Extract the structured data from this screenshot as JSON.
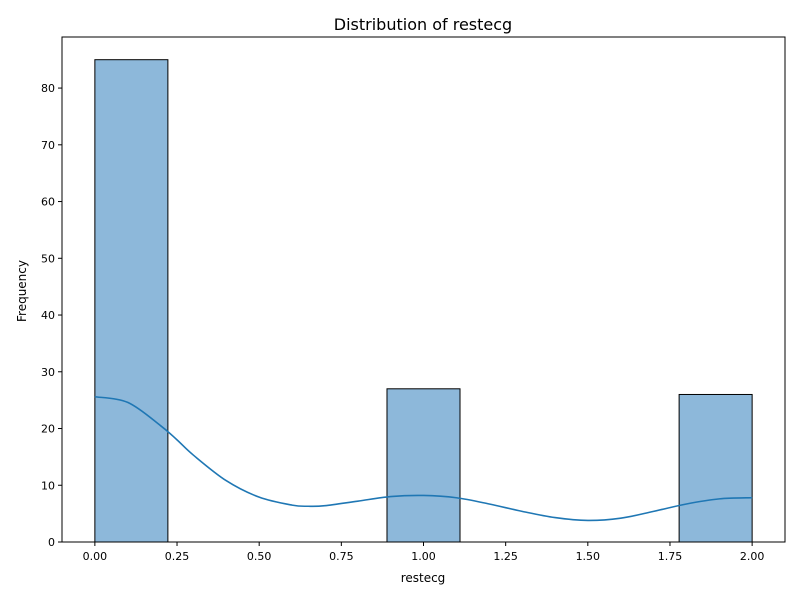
{
  "chart_data": {
    "type": "bar",
    "title": "Distribution of restecg",
    "xlabel": "restecg",
    "ylabel": "Frequency",
    "xlim": [
      -0.1,
      2.1
    ],
    "ylim": [
      0,
      89
    ],
    "xticks": [
      "0.00",
      "0.25",
      "0.50",
      "0.75",
      "1.00",
      "1.25",
      "1.50",
      "1.75",
      "2.00"
    ],
    "yticks": [
      "0",
      "10",
      "20",
      "30",
      "40",
      "50",
      "60",
      "70",
      "80"
    ],
    "bins": [
      {
        "x0": 0.0,
        "x1": 0.2222,
        "count": 85
      },
      {
        "x0": 0.2222,
        "x1": 0.4444,
        "count": 0
      },
      {
        "x0": 0.4444,
        "x1": 0.6667,
        "count": 0
      },
      {
        "x0": 0.6667,
        "x1": 0.8889,
        "count": 0
      },
      {
        "x0": 0.8889,
        "x1": 1.1111,
        "count": 27
      },
      {
        "x0": 1.1111,
        "x1": 1.3333,
        "count": 0
      },
      {
        "x0": 1.3333,
        "x1": 1.5556,
        "count": 0
      },
      {
        "x0": 1.5556,
        "x1": 1.7778,
        "count": 0
      },
      {
        "x0": 1.7778,
        "x1": 2.0,
        "count": 26
      }
    ],
    "kde": {
      "x": [
        0.0,
        0.1,
        0.2,
        0.25,
        0.3,
        0.4,
        0.5,
        0.6,
        0.65,
        0.7,
        0.8,
        0.9,
        1.0,
        1.1,
        1.2,
        1.3,
        1.4,
        1.5,
        1.6,
        1.7,
        1.8,
        1.9,
        2.0
      ],
      "y": [
        25.6,
        24.6,
        20.5,
        18.0,
        15.3,
        10.8,
        7.9,
        6.5,
        6.3,
        6.4,
        7.2,
        8.0,
        8.2,
        7.8,
        6.7,
        5.4,
        4.3,
        3.8,
        4.2,
        5.4,
        6.7,
        7.6,
        7.8
      ]
    },
    "colors": {
      "bar_fill": "#8db8da",
      "bar_edge": "#000000",
      "kde_line": "#1f77b4"
    },
    "grid": false,
    "legend": "none"
  }
}
